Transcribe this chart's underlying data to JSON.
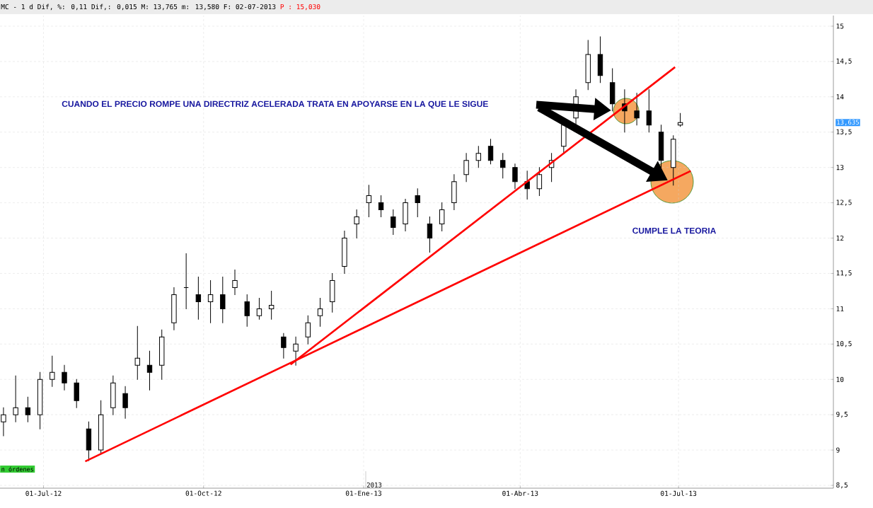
{
  "chart_data": {
    "type": "candlestick",
    "title": "MC - 1 d Dif, %: 0,11 Dif,: 0,015 M: 13,765 m: 13,580 F: 02-07-2013",
    "subtitle": "P : 15,030",
    "annotations": [
      "CUANDO EL PRECIO ROMPE UNA DIRECTRIZ ACELERADA TRATA EN APOYARSE EN LA QUE LE SIGUE",
      "CUMPLE LA TEORIA",
      "13,635",
      "2013",
      "n órdenes"
    ],
    "x": [
      "2012-06-08",
      "2012-06-15",
      "2012-06-22",
      "2012-06-29",
      "2012-07-06",
      "2012-07-13",
      "2012-07-20",
      "2012-07-27",
      "2012-08-03",
      "2012-08-10",
      "2012-08-17",
      "2012-08-24",
      "2012-08-31",
      "2012-09-07",
      "2012-09-14",
      "2012-09-21",
      "2012-09-28",
      "2012-10-05",
      "2012-10-12",
      "2012-10-19",
      "2012-10-26",
      "2012-11-02",
      "2012-11-09",
      "2012-11-16",
      "2012-11-23",
      "2012-11-30",
      "2012-12-07",
      "2012-12-14",
      "2012-12-21",
      "2012-12-28",
      "2013-01-04",
      "2013-01-11",
      "2013-01-18",
      "2013-01-25",
      "2013-02-01",
      "2013-02-08",
      "2013-02-15",
      "2013-02-22",
      "2013-03-01",
      "2013-03-08",
      "2013-03-15",
      "2013-03-22",
      "2013-03-29",
      "2013-04-05",
      "2013-04-12",
      "2013-04-19",
      "2013-04-26",
      "2013-05-03",
      "2013-05-10",
      "2013-05-17",
      "2013-05-24",
      "2013-05-31",
      "2013-06-07",
      "2013-06-14",
      "2013-06-21",
      "2013-06-28",
      "2013-07-02"
    ],
    "ohlc": [
      [
        9.4,
        9.6,
        9.2,
        9.5
      ],
      [
        9.5,
        10.05,
        9.4,
        9.6
      ],
      [
        9.6,
        9.75,
        9.4,
        9.5
      ],
      [
        9.5,
        10.1,
        9.3,
        10.0
      ],
      [
        10.0,
        10.33,
        9.9,
        10.1
      ],
      [
        10.1,
        10.2,
        9.85,
        9.95
      ],
      [
        9.95,
        10.0,
        9.6,
        9.7
      ],
      [
        9.3,
        9.4,
        8.85,
        9.0
      ],
      [
        9.0,
        9.7,
        8.95,
        9.5
      ],
      [
        9.6,
        10.05,
        9.5,
        9.95
      ],
      [
        9.8,
        9.9,
        9.45,
        9.6
      ],
      [
        10.2,
        10.75,
        10.0,
        10.3
      ],
      [
        10.2,
        10.4,
        9.85,
        10.1
      ],
      [
        10.2,
        10.7,
        10.0,
        10.6
      ],
      [
        10.8,
        11.3,
        10.7,
        11.2
      ],
      [
        11.3,
        11.78,
        11.0,
        11.3
      ],
      [
        11.2,
        11.45,
        10.85,
        11.1
      ],
      [
        11.1,
        11.4,
        10.8,
        11.2
      ],
      [
        11.2,
        11.45,
        10.8,
        11.0
      ],
      [
        11.3,
        11.55,
        11.2,
        11.4
      ],
      [
        11.1,
        11.2,
        10.75,
        10.9
      ],
      [
        10.9,
        11.15,
        10.85,
        11.0
      ],
      [
        11.0,
        11.25,
        10.85,
        11.05
      ],
      [
        10.6,
        10.65,
        10.3,
        10.45
      ],
      [
        10.4,
        10.6,
        10.2,
        10.5
      ],
      [
        10.6,
        10.9,
        10.5,
        10.8
      ],
      [
        10.9,
        11.15,
        10.75,
        11.0
      ],
      [
        11.1,
        11.5,
        10.95,
        11.4
      ],
      [
        11.6,
        12.1,
        11.5,
        12.0
      ],
      [
        12.2,
        12.4,
        12.0,
        12.3
      ],
      [
        12.5,
        12.75,
        12.3,
        12.6
      ],
      [
        12.5,
        12.6,
        12.3,
        12.4
      ],
      [
        12.3,
        12.4,
        12.05,
        12.15
      ],
      [
        12.2,
        12.55,
        12.1,
        12.5
      ],
      [
        12.6,
        12.7,
        12.3,
        12.5
      ],
      [
        12.2,
        12.3,
        11.8,
        12.0
      ],
      [
        12.2,
        12.5,
        12.1,
        12.4
      ],
      [
        12.5,
        12.9,
        12.4,
        12.8
      ],
      [
        12.9,
        13.2,
        12.8,
        13.1
      ],
      [
        13.1,
        13.3,
        13.0,
        13.2
      ],
      [
        13.3,
        13.4,
        13.05,
        13.1
      ],
      [
        13.1,
        13.2,
        12.85,
        13.0
      ],
      [
        13.0,
        13.05,
        12.7,
        12.8
      ],
      [
        12.8,
        12.95,
        12.55,
        12.7
      ],
      [
        12.7,
        13.0,
        12.6,
        12.9
      ],
      [
        13.0,
        13.2,
        12.8,
        13.1
      ],
      [
        13.3,
        13.7,
        13.2,
        13.6
      ],
      [
        13.7,
        14.1,
        13.6,
        14.0
      ],
      [
        14.2,
        14.8,
        14.1,
        14.6
      ],
      [
        14.6,
        14.85,
        14.2,
        14.3
      ],
      [
        14.2,
        14.4,
        13.8,
        13.9
      ],
      [
        13.9,
        14.1,
        13.5,
        13.8
      ],
      [
        13.8,
        14.05,
        13.6,
        13.7
      ],
      [
        13.8,
        14.1,
        13.5,
        13.6
      ],
      [
        13.5,
        13.6,
        12.95,
        13.1
      ],
      [
        13.0,
        13.45,
        12.75,
        13.4
      ],
      [
        13.6,
        13.765,
        13.58,
        13.635
      ]
    ],
    "series": [
      {
        "type": "line",
        "color": "#ff0000",
        "x": [
          "2012-11-20",
          "2013-06-29"
        ],
        "values": [
          10.21,
          14.42
        ]
      },
      {
        "type": "line",
        "color": "#ff0000",
        "x": [
          "2012-07-25",
          "2013-07-08"
        ],
        "values": [
          8.84,
          12.95
        ]
      }
    ],
    "xlim": [
      "2012-06-06",
      "2013-09-28"
    ],
    "ylim": [
      8.46,
      15.15
    ],
    "xticks": [
      {
        "value": "2012-07-01",
        "label": "01-Jul-12"
      },
      {
        "value": "2012-10-01",
        "label": "01-Oct-12"
      },
      {
        "value": "2013-01-01",
        "label": "01-Ene-13"
      },
      {
        "value": "2013-04-01",
        "label": "01-Abr-13"
      },
      {
        "value": "2013-07-01",
        "label": "01-Jul-13"
      }
    ],
    "yticks": [
      {
        "value": 8.5,
        "label": "8,5"
      },
      9,
      {
        "value": 9.5,
        "label": "9,5"
      },
      10,
      {
        "value": 10.5,
        "label": "10,5"
      },
      11,
      {
        "value": 11.5,
        "label": "11,5"
      },
      12,
      {
        "value": 12.5,
        "label": "12,5"
      },
      13,
      {
        "value": 13.5,
        "label": "13,5"
      },
      14,
      {
        "value": 14.5,
        "label": "14,5"
      },
      15
    ],
    "grid": true
  }
}
